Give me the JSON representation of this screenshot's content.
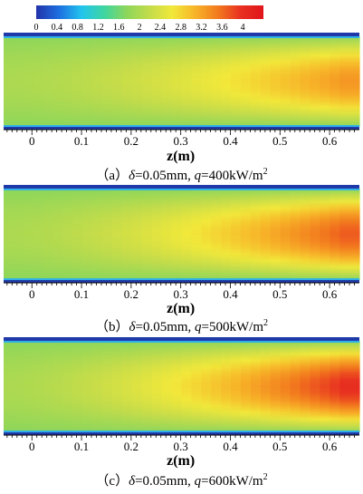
{
  "chart_data": {
    "type": "heatmap",
    "colorbar": {
      "ticks": [
        "0",
        "0.4",
        "0.8",
        "1.2",
        "1.6",
        "2",
        "2.4",
        "2.8",
        "3.2",
        "3.6",
        "4"
      ],
      "range": [
        0,
        4.4
      ],
      "colors": [
        "#2233aa",
        "#1d6fe0",
        "#22c4ee",
        "#3ed6a0",
        "#8ed65a",
        "#c4dc4a",
        "#f2e83a",
        "#f7b428",
        "#f27a1e",
        "#e83020",
        "#e0141c"
      ]
    },
    "xaxis": {
      "label": "z(m)",
      "ticks": [
        "0",
        "0.1",
        "0.2",
        "0.3",
        "0.4",
        "0.5",
        "0.6"
      ],
      "tick_values": [
        0,
        0.1,
        0.2,
        0.3,
        0.4,
        0.5,
        0.6
      ],
      "range": [
        -0.057,
        0.66
      ]
    },
    "panels": [
      {
        "caption": {
          "prefix": "（a）",
          "delta_symbol": "δ",
          "delta_value": "=0.05mm, ",
          "q_symbol": "q",
          "q_value": "=400kW/m",
          "sup": "2"
        },
        "field": {
          "edge_value": 1.75,
          "axis_inlet": 2.0,
          "axis_outlet": 3.3,
          "yellow_front_z": 0.22
        }
      },
      {
        "caption": {
          "prefix": "（b）",
          "delta_symbol": "δ",
          "delta_value": "=0.05mm, ",
          "q_symbol": "q",
          "q_value": "=500kW/m",
          "sup": "2"
        },
        "field": {
          "edge_value": 1.75,
          "axis_inlet": 2.0,
          "axis_outlet": 3.7,
          "yellow_front_z": 0.17
        }
      },
      {
        "caption": {
          "prefix": "（c）",
          "delta_symbol": "δ",
          "delta_value": "=0.05mm, ",
          "q_symbol": "q",
          "q_value": "=600kW/m",
          "sup": "2"
        },
        "field": {
          "edge_value": 1.75,
          "axis_inlet": 2.0,
          "axis_outlet": 4.0,
          "yellow_front_z": 0.14
        }
      }
    ]
  }
}
